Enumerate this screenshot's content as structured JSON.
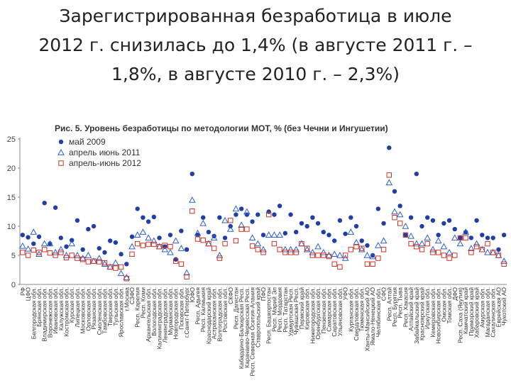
{
  "slide": {
    "title": "Зарегистрированная безработица в июле\n2012 г. снизилась до 1,4% (в августе 2011 г. –\n1,8%, в августе 2010 г. – 2,3%)"
  },
  "colors": {
    "may2009": "#1f3fa6",
    "aprjun2011": "#2c5fd0",
    "aprjun2012": "#cc3322"
  },
  "chart_data": {
    "type": "scatter",
    "title": "Рис. 5. Уровень безработицы по методологии МОТ, % (без Чечни и Ингушетии)",
    "ylim": [
      0,
      25
    ],
    "yticks": [
      0,
      5,
      10,
      15,
      20,
      25
    ],
    "legend_position": "top-left",
    "categories": [
      "РФ",
      "ЦФО",
      "Белгородская обл.",
      "Брянская обл.",
      "Владимирская обл.",
      "Воронежская обл.",
      "Ивановская обл.",
      "Калужская обл.",
      "Костромская обл.",
      "Курская обл.",
      "Липецкая обл.",
      "Московская обл.",
      "Орловская обл.",
      "Рязанская обл.",
      "Смоленская обл.",
      "Тамбовская обл.",
      "Тверская обл.",
      "Тульская обл.",
      "Ярославская обл.",
      "г.Москва",
      "СЗФО",
      "Респ. Карелия",
      "Респ. Коми",
      "Архангельская обл.",
      "Вологодская обл.",
      "Калининградская обл.",
      "Ленинградская обл.",
      "Мурманская обл.",
      "Новгородская обл.",
      "Псковская обл.",
      "г.Санкт-Петербург",
      "ЮФО",
      "Респ. Адыгея",
      "Респ. Калмыкия",
      "Краснодарский край",
      "Астраханская обл.",
      "Волгоградская обл.",
      "Ростовская обл.",
      "СКФО",
      "Респ. Дагестан",
      "Кабардино-Балкарская Респ.",
      "Карачаево-Черкесская Респ.",
      "Респ. Северная Осетия-Алания",
      "Ставропольский край",
      "ПФО",
      "Респ. Башкортостан",
      "Респ. Марий Эл",
      "Респ. Мордовия",
      "Респ. Татарстан",
      "Удмуртская Респ.",
      "Чувашская Респ.",
      "Пермский край",
      "Кировская обл.",
      "Нижегородская обл.",
      "Оренбургская обл.",
      "Пензенская обл.",
      "Самарская обл.",
      "Саратовская обл.",
      "Ульяновская обл.",
      "УФО",
      "Курганская обл.",
      "Свердловская обл.",
      "Тюменская обл.",
      "Ханты-Мансийский АО",
      "Ямало-Ненецкий АО",
      "Челябинская обл.",
      "СФО",
      "Респ. Алтай",
      "Респ. Бурятия",
      "Респ. Тыва",
      "Респ. Хакасия",
      "Алтайский край",
      "Забайкальский край",
      "Красноярский край",
      "Иркутская обл.",
      "Кемеровская обл.",
      "Новосибирская обл.",
      "Омская обл.",
      "Томская обл.",
      "ДФО",
      "Респ. Саха (Якутия)",
      "Камчатский край",
      "Приморский край",
      "Хабаровский край",
      "Амурская обл.",
      "Магаданская обл.",
      "Сахалинская обл.",
      "Еврейская АО",
      "Чукотский АО"
    ],
    "series": [
      {
        "name": "май 2009",
        "marker": "circle",
        "values": [
          8.5,
          8.1,
          7.0,
          8.2,
          14.0,
          7.0,
          13.2,
          8.0,
          6.5,
          7.6,
          11.0,
          6.0,
          9.5,
          10.0,
          6.2,
          5.5,
          7.5,
          7.2,
          5.2,
          3.5,
          8.2,
          13.0,
          11.5,
          10.8,
          11.6,
          8.0,
          6.5,
          8.5,
          4.3,
          9.2,
          6.0,
          19.0,
          8.5,
          11.5,
          9.0,
          8.3,
          11.5,
          8.0,
          10.0,
          12.0,
          13.0,
          12.0,
          10.8,
          12.0,
          8.5,
          12.5,
          12.0,
          13.5,
          8.8,
          12.0,
          9.0,
          10.5,
          10.0,
          11.5,
          10.5,
          9.0,
          8.5,
          7.5,
          11.0,
          8.7,
          11.5,
          10.0,
          7.5,
          6.7,
          5.0,
          13.0,
          10.5,
          23.5,
          16.0,
          13.5,
          8.5,
          11.5,
          19.0,
          10.0,
          11.5,
          11.0,
          8.5,
          10.5,
          11.0,
          9.5,
          8.0,
          9.0,
          8.0,
          11.0,
          8.5,
          8.0,
          8.0,
          6.0,
          8.5
        ]
      },
      {
        "name": "апрель июнь 2011",
        "marker": "triangle",
        "values": [
          6.6,
          6.1,
          9.0,
          5.2,
          7.0,
          7.0,
          5.5,
          6.0,
          5.0,
          7.0,
          5.0,
          4.5,
          5.0,
          4.0,
          4.5,
          3.5,
          3.0,
          3.7,
          1.9,
          1.2,
          6.5,
          8.5,
          9.0,
          8.0,
          7.5,
          6.5,
          6.0,
          5.5,
          7.5,
          6.2,
          2.0,
          14.5,
          8.8,
          10.5,
          7.0,
          8.0,
          5.0,
          11.0,
          9.5,
          13.0,
          10.2,
          12.5,
          8.0,
          7.0,
          6.0,
          8.5,
          8.5,
          8.5,
          6.0,
          6.0,
          6.0,
          7.0,
          6.0,
          5.5,
          6.5,
          5.5,
          5.0,
          5.2,
          5.0,
          4.5,
          9.0,
          7.2,
          6.0,
          5.0,
          4.8,
          6.7,
          7.5,
          17.5,
          12.5,
          12.0,
          10.0,
          8.3,
          7.0,
          7.0,
          8.0,
          6.0,
          7.5,
          6.5,
          5.5,
          8.0,
          7.0,
          9.0,
          6.2,
          7.0,
          6.0,
          5.5,
          5.5,
          5.0,
          4.0
        ]
      },
      {
        "name": "апрель-июнь 2012",
        "marker": "square",
        "values": [
          5.5,
          5.0,
          5.9,
          5.5,
          6.0,
          5.4,
          5.0,
          5.5,
          4.6,
          5.0,
          4.5,
          4.3,
          3.9,
          4.0,
          3.9,
          3.7,
          3.0,
          2.8,
          3.0,
          1.0,
          5.2,
          7.0,
          6.7,
          6.9,
          6.9,
          6.5,
          6.7,
          6.5,
          4.0,
          3.5,
          1.3,
          12.6,
          7.8,
          7.6,
          7.0,
          6.2,
          4.5,
          7.0,
          11.0,
          7.5,
          9.5,
          9.5,
          6.6,
          6.0,
          5.5,
          12.0,
          7.0,
          6.0,
          5.5,
          5.5,
          5.5,
          7.0,
          6.2,
          5.0,
          5.0,
          5.0,
          4.8,
          3.5,
          3.0,
          5.0,
          6.0,
          6.5,
          6.2,
          3.5,
          3.5,
          4.5,
          6.0,
          18.8,
          11.5,
          10.5,
          8.5,
          7.0,
          6.5,
          6.0,
          7.0,
          5.5,
          5.5,
          5.0,
          4.5,
          5.0,
          8.0,
          8.0,
          5.5,
          6.5,
          6.0,
          7.0,
          5.5,
          5.0,
          3.5
        ]
      }
    ]
  }
}
